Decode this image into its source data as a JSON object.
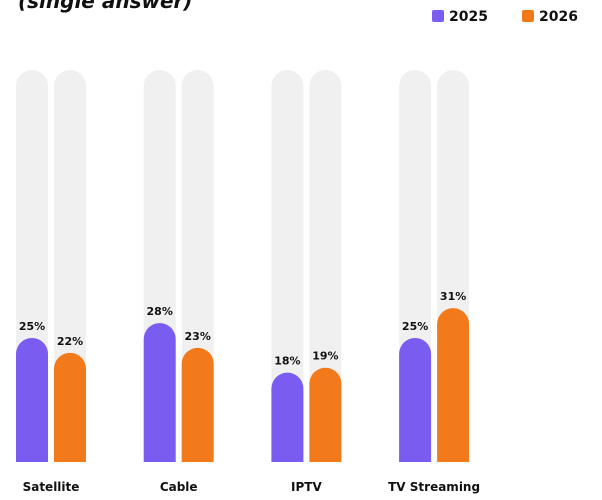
{
  "chart_data": {
    "type": "bar",
    "title": "(single answer)",
    "categories": [
      "Satellite",
      "Cable",
      "IPTV",
      "TV Streaming"
    ],
    "series": [
      {
        "name": "2025",
        "color": "#7b5cf0",
        "values": [
          25,
          28,
          18,
          25
        ],
        "value_labels": [
          "25%",
          "28%",
          "18%",
          "25%"
        ]
      },
      {
        "name": "2026",
        "color": "#f27a1a",
        "values": [
          22,
          23,
          19,
          31
        ],
        "value_labels": [
          "22%",
          "23%",
          "19%",
          "31%"
        ]
      }
    ],
    "ylim": [
      0,
      79
    ],
    "legend": "top-right"
  }
}
